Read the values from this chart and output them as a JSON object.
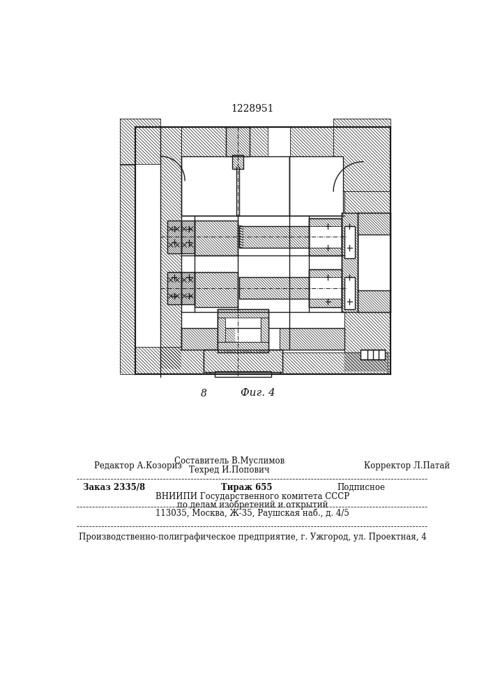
{
  "patent_number": "1228951",
  "fig_label": "Фиг. 4",
  "fig_number": "8",
  "bg_color": "#ffffff",
  "line_color": "#1a1a1a",
  "hatch_color": "#333333",
  "text_color": "#111111",
  "footer_line1_left": "Редактор А.Козориз",
  "footer_line1_center_top": "Составитель В.Муслимов",
  "footer_line1_center_bot": "Техред И.Попович",
  "footer_line1_right": "Корректор Л.Патай",
  "footer_line2_left": "Заказ 2335/8",
  "footer_line2_center": "Тираж 655",
  "footer_line2_right": "Подписное",
  "footer_line3": "ВНИИПИ Государственного комитета СССР",
  "footer_line4": "по делам изобретений и открытий",
  "footer_line5": "113035, Москва, Ж-35, Раушская наб., д. 4/5",
  "footer_line6": "Производственно-полиграфическое предприятие, г. Ужгород, ул. Проектная, 4"
}
